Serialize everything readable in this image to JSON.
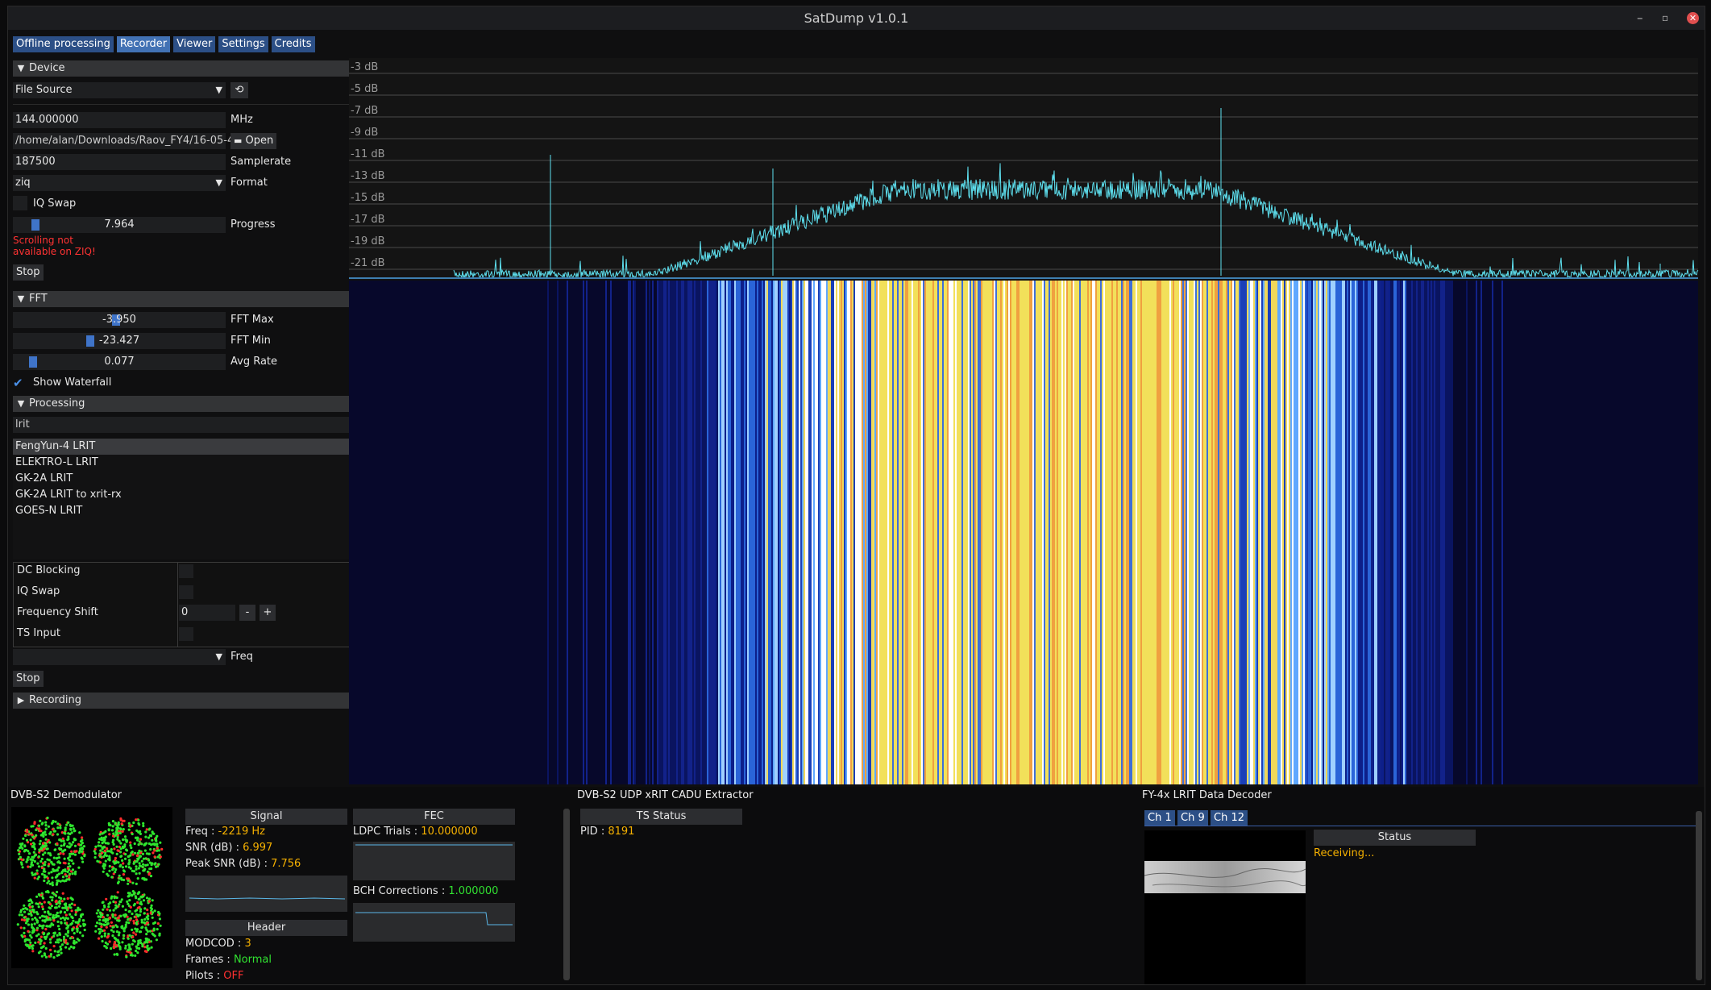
{
  "window": {
    "title": "SatDump v1.0.1",
    "min_glyph": "–",
    "restore_glyph": "▫",
    "close_glyph": "✕"
  },
  "tabs": [
    "Offline processing",
    "Recorder",
    "Viewer",
    "Settings",
    "Credits"
  ],
  "device": {
    "header": "Device",
    "source": "File Source",
    "frequency": "144.000000",
    "frequency_unit": "MHz",
    "file_path": "/home/alan/Downloads/Raov_FY4/16-05-4",
    "open_label": "Open",
    "samplerate": "187500",
    "samplerate_label": "Samplerate",
    "format": "ziq",
    "format_label": "Format",
    "iq_swap_label": "IQ Swap",
    "progress": "7.964",
    "progress_label": "Progress",
    "warning_line1": "Scrolling not",
    "warning_line2": "available on ZIQ!",
    "stop_label": "Stop"
  },
  "fft": {
    "header": "FFT",
    "max_value": "-3.950",
    "max_label": "FFT Max",
    "min_value": "-23.427",
    "min_label": "FFT Min",
    "avg_value": "0.077",
    "avg_label": "Avg Rate",
    "show_waterfall": "Show Waterfall"
  },
  "processing": {
    "header": "Processing",
    "search": "lrit",
    "items": [
      "FengYun-4 LRIT",
      "ELEKTRO-L LRIT",
      "GK-2A LRIT",
      "GK-2A LRIT to xrit-rx",
      "GOES-N LRIT"
    ],
    "options": [
      "DC Blocking",
      "IQ Swap",
      "Frequency Shift",
      "TS Input"
    ],
    "freq_shift_value": "0",
    "minus": "-",
    "plus": "+",
    "freq_label": "Freq",
    "stop_label": "Stop",
    "recording_header": "Recording"
  },
  "fft_plot": {
    "db_labels": [
      "-3 dB",
      "-5 dB",
      "-7 dB",
      "-9 dB",
      "-11 dB",
      "-13 dB",
      "-15 dB",
      "-17 dB",
      "-19 dB",
      "-21 dB"
    ],
    "color": "#5ee0ef"
  },
  "demod": {
    "title": "DVB-S2 Demodulator",
    "signal_header": "Signal",
    "freq_label": "Freq :",
    "freq_value": "-2219 Hz",
    "snr_label": "SNR (dB) :",
    "snr_value": "6.997",
    "peak_label": "Peak SNR (dB) :",
    "peak_value": "7.756",
    "header_header": "Header",
    "modcod_label": "MODCOD :",
    "modcod_value": "3",
    "frames_label": "Frames :",
    "frames_value": "Normal",
    "pilots_label": "Pilots :",
    "pilots_value": "OFF",
    "fec_header": "FEC",
    "ldpc_label": "LDPC Trials :",
    "ldpc_value": "10.000000",
    "bch_label": "BCH Corrections :",
    "bch_value": "1.000000"
  },
  "extractor": {
    "title": "DVB-S2 UDP xRIT CADU Extractor",
    "ts_header": "TS Status",
    "pid_label": "PID :",
    "pid_value": "8191"
  },
  "decoder": {
    "title": "FY-4x LRIT Data Decoder",
    "channels": [
      "Ch 1",
      "Ch 9",
      "Ch 12"
    ],
    "status_header": "Status",
    "status_value": "Receiving..."
  }
}
